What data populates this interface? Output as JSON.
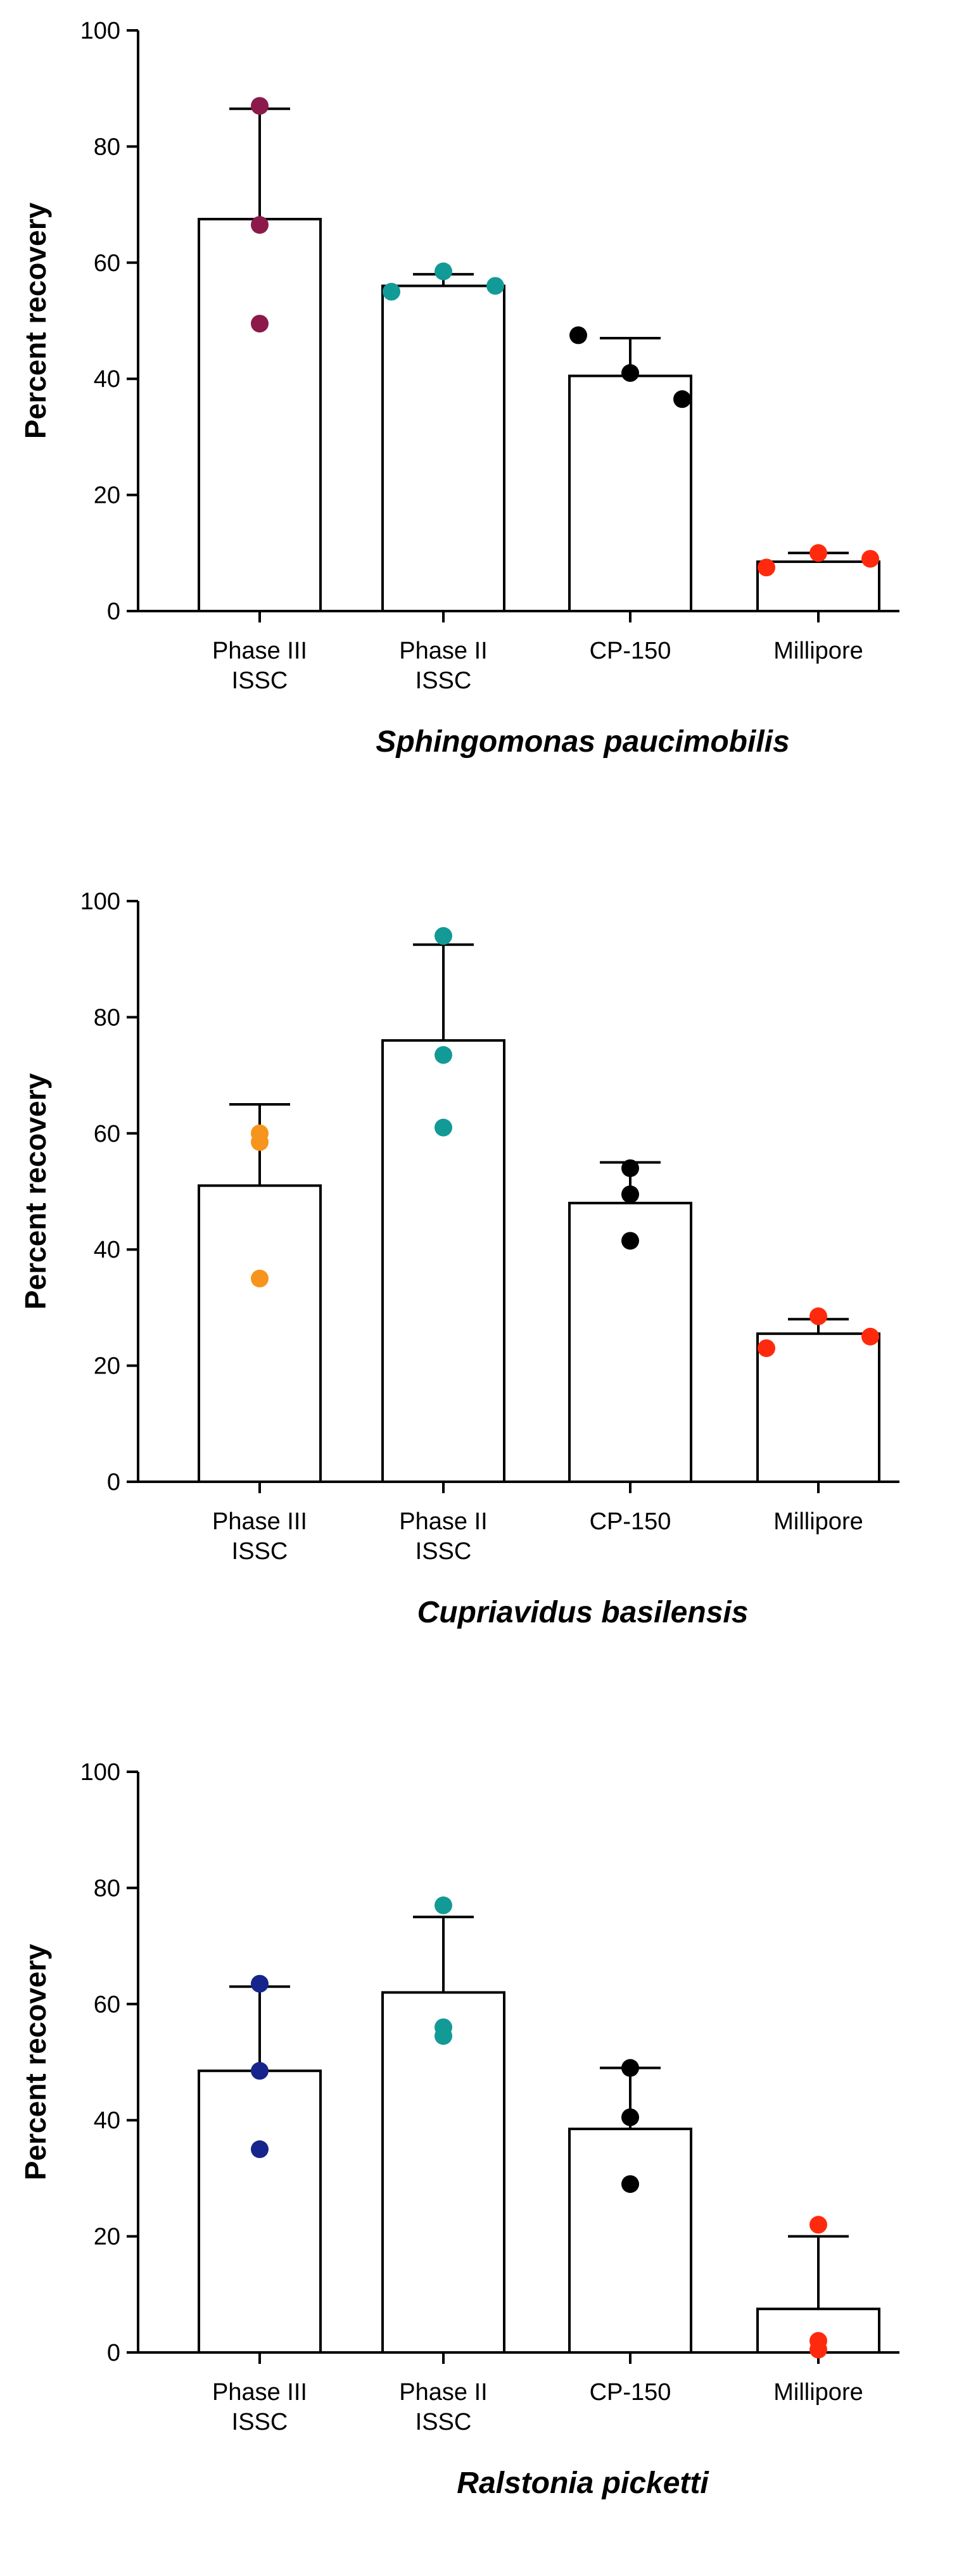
{
  "chart_data": [
    {
      "type": "bar",
      "title": "",
      "xlabel": "Sphingomonas paucimobilis",
      "ylabel": "Percent recovery",
      "ylim": [
        0,
        100
      ],
      "yticks": [
        0,
        20,
        40,
        60,
        80,
        100
      ],
      "categories": [
        {
          "line1": "Phase III",
          "line2": "ISSC"
        },
        {
          "line1": "Phase II",
          "line2": "ISSC"
        },
        {
          "line1": "CP-150",
          "line2": ""
        },
        {
          "line1": "Millipore",
          "line2": ""
        }
      ],
      "means": [
        67.5,
        56,
        40.5,
        8.5
      ],
      "error_upper": [
        86.5,
        58,
        47,
        10
      ],
      "points": [
        [
          87,
          66.5,
          49.5
        ],
        [
          55,
          58.5,
          56
        ],
        [
          47.5,
          41,
          36.5
        ],
        [
          7.5,
          10,
          9
        ]
      ],
      "point_colors": [
        "#8b1a4a",
        "#129a96",
        "#000000",
        "#ff2a0d"
      ]
    },
    {
      "type": "bar",
      "title": "",
      "xlabel": "Cupriavidus basilensis",
      "ylabel": "Percent recovery",
      "ylim": [
        0,
        100
      ],
      "yticks": [
        0,
        20,
        40,
        60,
        80,
        100
      ],
      "categories": [
        {
          "line1": "Phase III",
          "line2": "ISSC"
        },
        {
          "line1": "Phase II",
          "line2": "ISSC"
        },
        {
          "line1": "CP-150",
          "line2": ""
        },
        {
          "line1": "Millipore",
          "line2": ""
        }
      ],
      "means": [
        51,
        76,
        48,
        25.5
      ],
      "error_upper": [
        65,
        92.5,
        55,
        28
      ],
      "points": [
        [
          60,
          58.5,
          35
        ],
        [
          94,
          73.5,
          61
        ],
        [
          54,
          49.5,
          41.5
        ],
        [
          23,
          28.5,
          25
        ]
      ],
      "point_colors": [
        "#f7941d",
        "#129a96",
        "#000000",
        "#ff2a0d"
      ]
    },
    {
      "type": "bar",
      "title": "",
      "xlabel": "Ralstonia picketti",
      "ylabel": "Percent recovery",
      "ylim": [
        0,
        100
      ],
      "yticks": [
        0,
        20,
        40,
        60,
        80,
        100
      ],
      "categories": [
        {
          "line1": "Phase III",
          "line2": "ISSC"
        },
        {
          "line1": "Phase II",
          "line2": "ISSC"
        },
        {
          "line1": "CP-150",
          "line2": ""
        },
        {
          "line1": "Millipore",
          "line2": ""
        }
      ],
      "means": [
        48.5,
        62,
        38.5,
        7.5
      ],
      "error_upper": [
        63,
        75,
        49,
        20
      ],
      "points": [
        [
          63.5,
          48.5,
          35
        ],
        [
          77,
          54.5,
          56
        ],
        [
          49,
          40.5,
          29
        ],
        [
          22,
          0.5,
          2
        ]
      ],
      "point_colors": [
        "#15258c",
        "#129a96",
        "#000000",
        "#ff2a0d"
      ]
    }
  ]
}
